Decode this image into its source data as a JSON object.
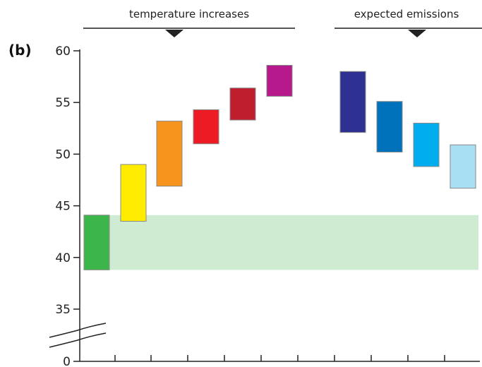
{
  "chart_data": {
    "type": "bar",
    "subtype": "floating-range",
    "panel_label": "(b)",
    "title": "",
    "xlabel": "",
    "ylabel": "",
    "yticks": [
      "60",
      "55",
      "50",
      "45",
      "40",
      "35",
      "0"
    ],
    "ylim": [
      35,
      60
    ],
    "axis_break": true,
    "break_tick_label": "0",
    "grid": false,
    "groups": [
      {
        "label": "temperature increases",
        "bars": [
          1,
          2,
          3,
          4,
          5
        ]
      },
      {
        "label": "expected emissions",
        "bars": [
          6,
          7,
          8,
          9
        ]
      }
    ],
    "band": {
      "low": 38.8,
      "high": 44.1,
      "color": "#cfebd2"
    },
    "bars": [
      {
        "low": 38.8,
        "high": 44.1,
        "color": "#3cb54a"
      },
      {
        "low": 43.5,
        "high": 49.0,
        "color": "#ffec00"
      },
      {
        "low": 46.9,
        "high": 53.2,
        "color": "#f7941d"
      },
      {
        "low": 51.0,
        "high": 54.3,
        "color": "#ed1c24"
      },
      {
        "low": 53.3,
        "high": 56.4,
        "color": "#be1e2d"
      },
      {
        "low": 55.6,
        "high": 58.6,
        "color": "#b5198c"
      },
      {
        "low": 52.1,
        "high": 58.0,
        "color": "#2e3192"
      },
      {
        "low": 50.2,
        "high": 55.1,
        "color": "#0072bc"
      },
      {
        "low": 48.8,
        "high": 53.0,
        "color": "#00aeef"
      },
      {
        "low": 46.7,
        "high": 50.9,
        "color": "#a8dff2"
      }
    ]
  }
}
